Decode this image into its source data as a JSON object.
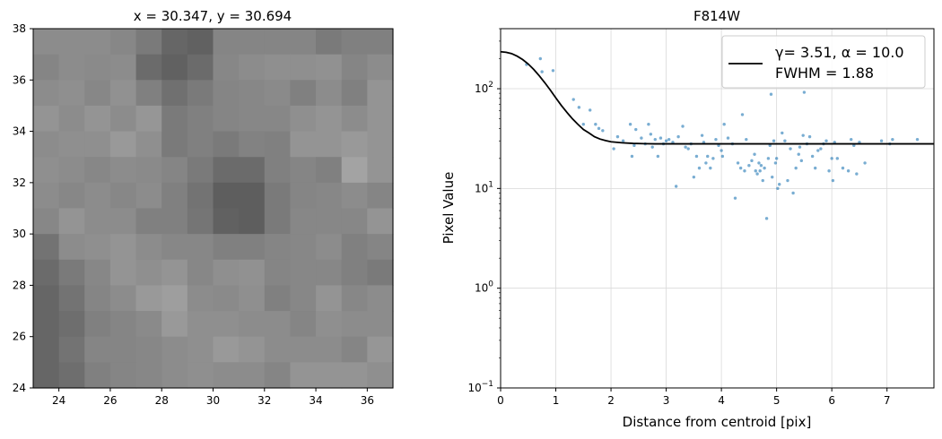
{
  "figure_background": "#ffffff",
  "left_panel": {
    "title": "x = 30.347, y = 30.694",
    "type": "heatmap",
    "x_ticks": [
      "24",
      "26",
      "28",
      "30",
      "32",
      "34",
      "36"
    ],
    "y_ticks": [
      "24",
      "26",
      "28",
      "30",
      "32",
      "34",
      "36",
      "38"
    ],
    "xlim": [
      23,
      37
    ],
    "ylim": [
      24,
      38
    ],
    "colormap": "gray",
    "cells_top_to_bottom": [
      [
        0.55,
        0.55,
        0.55,
        0.53,
        0.48,
        0.4,
        0.38,
        0.52,
        0.52,
        0.52,
        0.52,
        0.48,
        0.5,
        0.5
      ],
      [
        0.52,
        0.55,
        0.54,
        0.55,
        0.42,
        0.38,
        0.42,
        0.53,
        0.55,
        0.56,
        0.56,
        0.57,
        0.52,
        0.55
      ],
      [
        0.55,
        0.56,
        0.53,
        0.57,
        0.5,
        0.44,
        0.48,
        0.52,
        0.53,
        0.54,
        0.5,
        0.55,
        0.5,
        0.58
      ],
      [
        0.58,
        0.55,
        0.58,
        0.55,
        0.59,
        0.48,
        0.5,
        0.52,
        0.53,
        0.53,
        0.56,
        0.58,
        0.55,
        0.58
      ],
      [
        0.55,
        0.56,
        0.56,
        0.6,
        0.56,
        0.48,
        0.5,
        0.48,
        0.51,
        0.5,
        0.58,
        0.58,
        0.6,
        0.58
      ],
      [
        0.56,
        0.55,
        0.53,
        0.55,
        0.54,
        0.52,
        0.48,
        0.42,
        0.42,
        0.5,
        0.52,
        0.5,
        0.64,
        0.58
      ],
      [
        0.55,
        0.53,
        0.55,
        0.53,
        0.55,
        0.5,
        0.45,
        0.37,
        0.37,
        0.48,
        0.52,
        0.53,
        0.55,
        0.52
      ],
      [
        0.53,
        0.58,
        0.55,
        0.55,
        0.5,
        0.5,
        0.46,
        0.38,
        0.37,
        0.48,
        0.53,
        0.53,
        0.53,
        0.58
      ],
      [
        0.45,
        0.55,
        0.56,
        0.58,
        0.55,
        0.53,
        0.53,
        0.5,
        0.5,
        0.52,
        0.53,
        0.55,
        0.5,
        0.52
      ],
      [
        0.42,
        0.48,
        0.53,
        0.58,
        0.56,
        0.58,
        0.53,
        0.56,
        0.57,
        0.52,
        0.53,
        0.53,
        0.5,
        0.48
      ],
      [
        0.4,
        0.45,
        0.52,
        0.55,
        0.6,
        0.62,
        0.55,
        0.54,
        0.56,
        0.5,
        0.53,
        0.58,
        0.53,
        0.55
      ],
      [
        0.4,
        0.43,
        0.5,
        0.52,
        0.54,
        0.6,
        0.56,
        0.56,
        0.55,
        0.55,
        0.52,
        0.56,
        0.55,
        0.55
      ],
      [
        0.4,
        0.45,
        0.52,
        0.52,
        0.53,
        0.55,
        0.56,
        0.6,
        0.58,
        0.55,
        0.55,
        0.55,
        0.52,
        0.59
      ],
      [
        0.4,
        0.43,
        0.5,
        0.52,
        0.53,
        0.55,
        0.56,
        0.55,
        0.55,
        0.52,
        0.58,
        0.58,
        0.58,
        0.56
      ]
    ]
  },
  "chart_data": {
    "type": "scatter",
    "title": "F814W",
    "xlabel": "Distance from centroid [pix]",
    "ylabel": "Pixel Value",
    "xlim": [
      0,
      7.85
    ],
    "ylim": [
      0.1,
      400
    ],
    "y_scale": "log",
    "grid": true,
    "x_ticks": [
      "0",
      "1",
      "2",
      "3",
      "4",
      "5",
      "6",
      "7"
    ],
    "y_ticks": [
      {
        "value": 0.1,
        "base": "10",
        "exp": "−1"
      },
      {
        "value": 1,
        "base": "10",
        "exp": "0"
      },
      {
        "value": 10,
        "base": "10",
        "exp": "1"
      },
      {
        "value": 100,
        "base": "10",
        "exp": "2"
      }
    ],
    "legend": {
      "placement": "top-right",
      "line1": "γ= 3.51, α = 10.0",
      "line2": "FWHM = 1.88"
    },
    "model_curve": {
      "label": "γ= 3.51, α = 10.0",
      "color": "#000000",
      "x": [
        0,
        0.1,
        0.2,
        0.3,
        0.4,
        0.5,
        0.6,
        0.7,
        0.8,
        0.9,
        1.0,
        1.1,
        1.2,
        1.3,
        1.4,
        1.5,
        1.6,
        1.7,
        1.8,
        1.9,
        2.0,
        2.2,
        2.4,
        2.6,
        2.8,
        3.0,
        3.5,
        4.0,
        5.0,
        6.0,
        7.0,
        7.85
      ],
      "y": [
        235,
        232,
        225,
        212,
        196,
        177,
        156,
        135,
        115,
        97,
        81,
        68,
        58,
        50,
        44,
        39,
        36,
        33,
        31.3,
        30.2,
        29.4,
        28.7,
        28.3,
        28.1,
        28.0,
        28.0,
        28.0,
        28.0,
        28.0,
        28.0,
        28.0,
        28.0
      ]
    },
    "data_points": {
      "color": "#1f77b4",
      "x": [
        0.47,
        0.72,
        0.75,
        0.95,
        1.32,
        1.42,
        1.5,
        1.62,
        1.72,
        1.78,
        1.85,
        2.05,
        2.12,
        2.22,
        2.35,
        2.38,
        2.42,
        2.45,
        2.55,
        2.62,
        2.68,
        2.72,
        2.75,
        2.8,
        2.85,
        2.9,
        2.95,
        3.0,
        3.05,
        3.12,
        3.18,
        3.22,
        3.3,
        3.35,
        3.4,
        3.45,
        3.5,
        3.55,
        3.6,
        3.65,
        3.68,
        3.72,
        3.75,
        3.8,
        3.85,
        3.9,
        3.95,
        4.0,
        4.02,
        4.05,
        4.12,
        4.2,
        4.25,
        4.3,
        4.35,
        4.38,
        4.42,
        4.45,
        4.5,
        4.55,
        4.6,
        4.62,
        4.65,
        4.68,
        4.7,
        4.72,
        4.75,
        4.78,
        4.82,
        4.85,
        4.88,
        4.9,
        4.92,
        4.95,
        4.98,
        5.0,
        5.02,
        5.05,
        5.1,
        5.15,
        5.2,
        5.25,
        5.3,
        5.35,
        5.4,
        5.42,
        5.45,
        5.48,
        5.5,
        5.55,
        5.6,
        5.65,
        5.7,
        5.75,
        5.8,
        5.85,
        5.9,
        5.95,
        6.0,
        6.02,
        6.05,
        6.1,
        6.2,
        6.3,
        6.35,
        6.4,
        6.45,
        6.5,
        6.6,
        6.9,
        7.05,
        7.1,
        7.55
      ],
      "y": [
        175,
        200,
        148,
        152,
        78,
        65,
        44,
        61,
        44,
        40,
        38,
        25,
        33,
        30,
        44,
        21,
        27,
        39,
        32,
        28,
        44,
        35,
        26,
        31,
        21,
        32,
        28,
        30,
        31,
        29,
        10.5,
        33,
        42,
        26,
        25,
        28,
        13,
        21,
        16,
        34,
        29,
        18,
        21,
        16,
        20,
        31,
        27,
        24,
        21,
        44,
        32,
        28,
        8,
        18,
        16,
        55,
        15,
        31,
        17,
        19,
        22,
        15,
        14,
        18,
        15,
        17,
        12,
        16,
        5,
        20,
        27,
        88,
        13,
        30,
        18,
        20,
        10,
        11,
        36,
        30,
        12,
        25,
        9,
        16,
        22,
        26,
        19,
        34,
        92,
        28,
        33,
        21,
        16,
        24,
        25,
        28,
        30,
        15,
        20,
        12,
        29,
        20,
        16,
        15,
        31,
        27,
        14,
        29,
        18,
        30,
        28,
        31,
        31
      ]
    }
  }
}
